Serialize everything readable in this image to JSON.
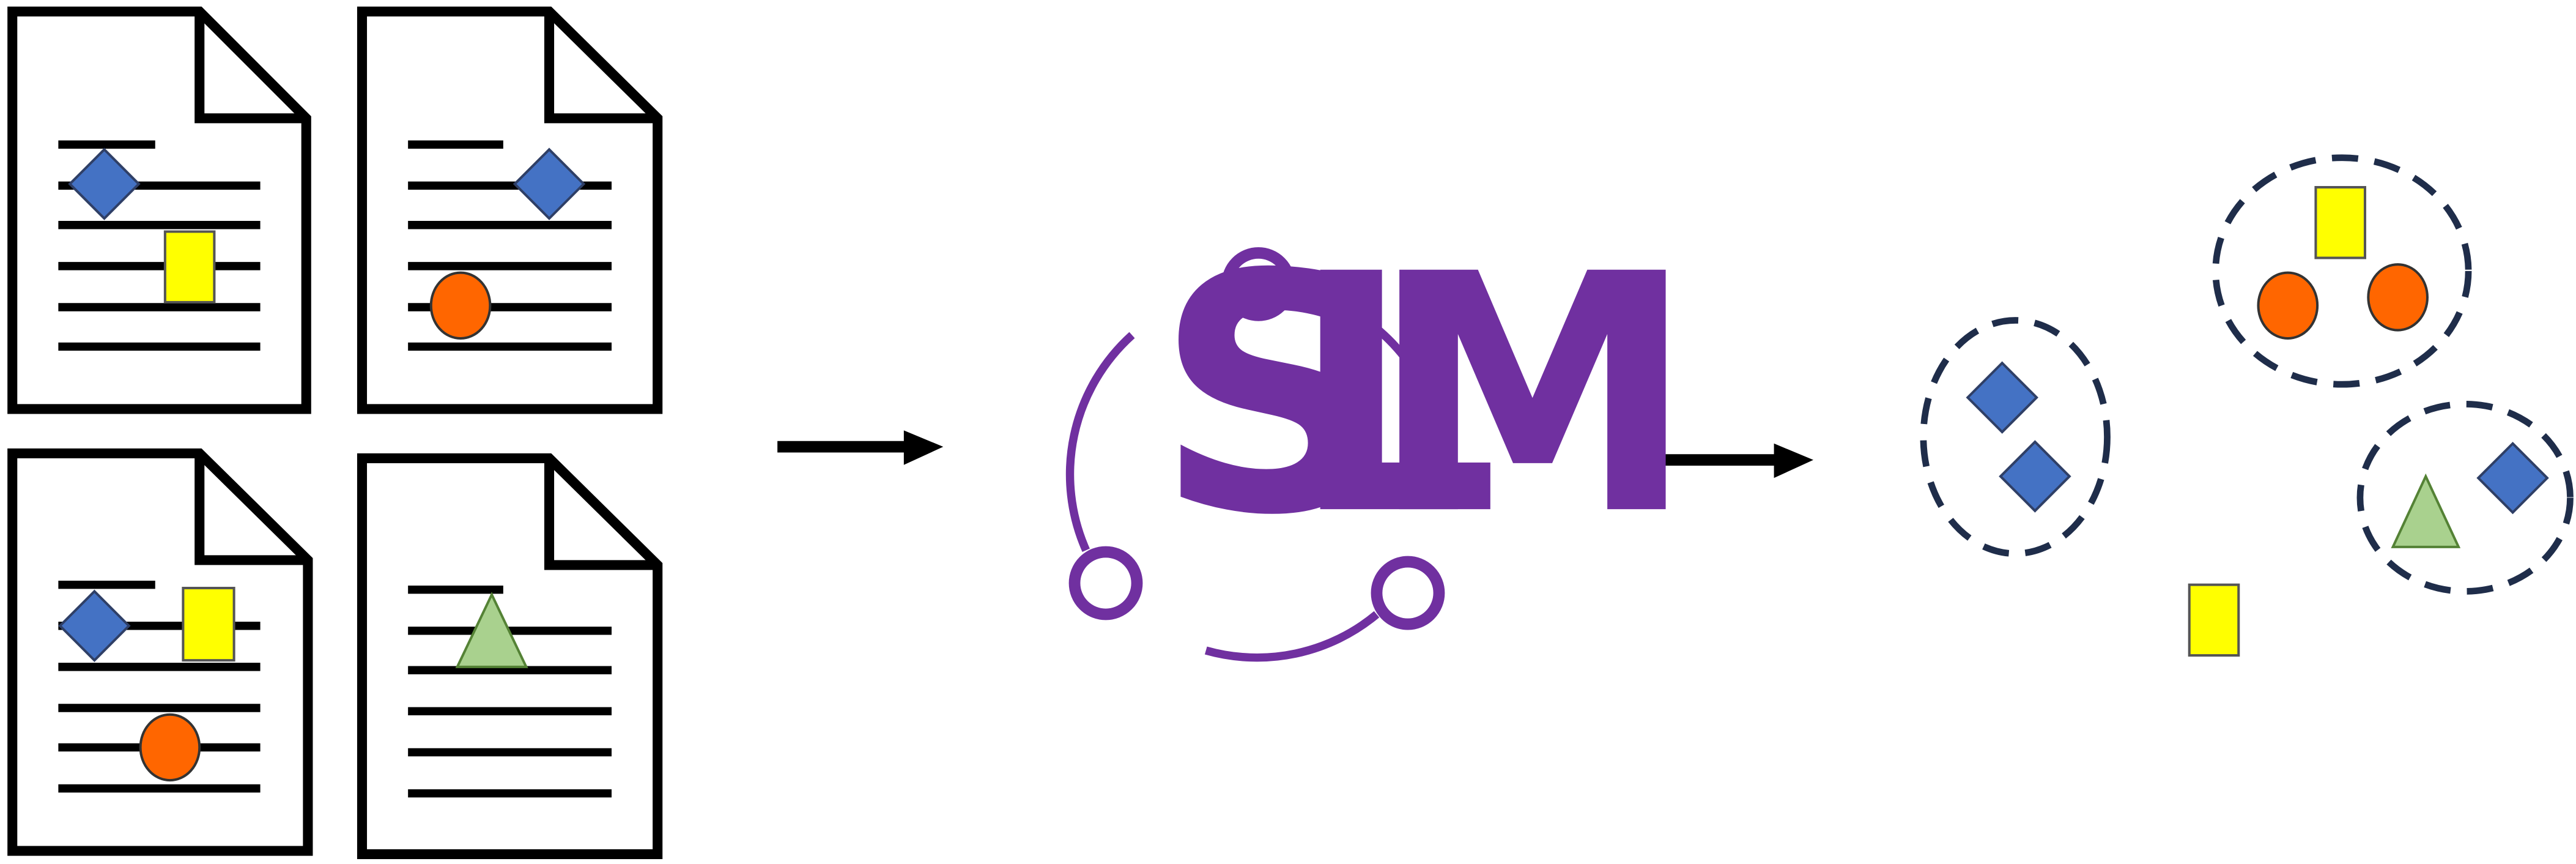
{
  "colors": {
    "outline": "#000000",
    "diamond": "#4472C4",
    "rectangle": "#FFFF00",
    "circle": "#FF6600",
    "triangle": "#A9D18E",
    "triangle_stroke": "#548235",
    "logo": "#7030A0",
    "cluster_ring": "#1F2D4A"
  },
  "logo": {
    "letters": [
      "S",
      "L",
      "M"
    ]
  },
  "icons": {
    "documents": [
      "document-icon",
      "document-icon",
      "document-icon",
      "document-icon"
    ],
    "shapes": [
      "diamond-icon",
      "rectangle-icon",
      "circle-icon",
      "triangle-icon"
    ],
    "arrows": [
      "arrow-right-icon",
      "arrow-right-icon"
    ]
  }
}
